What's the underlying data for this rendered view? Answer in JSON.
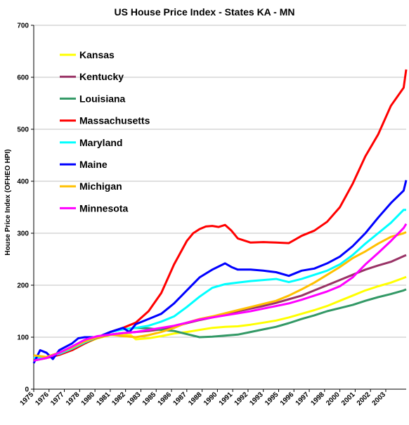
{
  "chart_data": {
    "type": "line",
    "title": "US House Price Index - States KA - MN",
    "xlabel": "",
    "ylabel": "House Price Index (OFHEO  HPI)",
    "ylim": [
      0,
      700
    ],
    "xlim": [
      1975,
      2004.2
    ],
    "y_ticks": [
      0,
      100,
      200,
      300,
      400,
      500,
      600,
      700
    ],
    "x_tick_labels": [
      "1975",
      "1976",
      "1977",
      "1978",
      "1980",
      "1981",
      "1982",
      "1983",
      "1985",
      "1986",
      "1987",
      "1988",
      "1990",
      "1991",
      "1992",
      "1993",
      "1995",
      "1996",
      "1997",
      "1998",
      "2000",
      "2001",
      "2002",
      "2003"
    ],
    "x_tick_values": [
      1975,
      1976.2,
      1977.4,
      1978.6,
      1979.8,
      1981,
      1982.2,
      1983.4,
      1984.6,
      1985.8,
      1987,
      1988.2,
      1989.4,
      1990.6,
      1991.8,
      1993,
      1994.2,
      1995.4,
      1996.6,
      1997.8,
      1999,
      2000.2,
      2001.4,
      2002.6
    ],
    "grid": "horizontal",
    "legend_position": "top-left",
    "series": [
      {
        "name": "Kansas",
        "color": "#ffff00",
        "x": [
          1975,
          1976,
          1977,
          1978,
          1979,
          1980,
          1981,
          1982,
          1982.6,
          1983,
          1984,
          1985,
          1986,
          1987,
          1988,
          1989,
          1990,
          1991,
          1992,
          1993,
          1994,
          1995,
          1996,
          1997,
          1998,
          1999,
          2000,
          2001,
          2002,
          2003,
          2004,
          2004.2
        ],
        "y": [
          58,
          62,
          70,
          78,
          88,
          98,
          104,
          105,
          104,
          96,
          98,
          102,
          107,
          110,
          114,
          118,
          120,
          121,
          124,
          128,
          132,
          138,
          145,
          152,
          160,
          170,
          180,
          190,
          198,
          205,
          214,
          216
        ]
      },
      {
        "name": "Kentucky",
        "color": "#993366",
        "x": [
          1975,
          1976,
          1977,
          1978,
          1979,
          1980,
          1981,
          1982,
          1983,
          1984,
          1985,
          1986,
          1987,
          1988,
          1989,
          1990,
          1991,
          1992,
          1993,
          1994,
          1995,
          1996,
          1997,
          1998,
          1999,
          2000,
          2001,
          2002,
          2003,
          2004,
          2004.2
        ],
        "y": [
          60,
          62,
          70,
          80,
          90,
          99,
          105,
          108,
          110,
          112,
          115,
          120,
          127,
          133,
          138,
          143,
          150,
          155,
          160,
          166,
          173,
          180,
          190,
          200,
          210,
          220,
          230,
          238,
          245,
          256,
          258
        ]
      },
      {
        "name": "Louisiana",
        "color": "#339966",
        "x": [
          1975,
          1976,
          1977,
          1978,
          1979,
          1980,
          1981,
          1982,
          1983,
          1984,
          1985,
          1986,
          1987,
          1988,
          1989,
          1990,
          1991,
          1992,
          1993,
          1994,
          1995,
          1996,
          1997,
          1998,
          1999,
          2000,
          2001,
          2002,
          2003,
          2004,
          2004.2
        ],
        "y": [
          55,
          60,
          67,
          75,
          88,
          100,
          110,
          115,
          118,
          117,
          114,
          112,
          106,
          100,
          101,
          103,
          105,
          110,
          115,
          120,
          127,
          135,
          142,
          150,
          156,
          162,
          170,
          177,
          183,
          190,
          192
        ]
      },
      {
        "name": "Massachusetts",
        "color": "#ff0000",
        "x": [
          1975,
          1976,
          1977,
          1978,
          1979,
          1980,
          1981,
          1982,
          1983,
          1984,
          1985,
          1986,
          1987,
          1987.5,
          1988,
          1988.5,
          1989,
          1989.5,
          1990,
          1990.5,
          1991,
          1992,
          1993,
          1994,
          1995,
          1995.5,
          1996,
          1997,
          1998,
          1999,
          2000,
          2001,
          2002,
          2003,
          2004,
          2004.2
        ],
        "y": [
          58,
          60,
          66,
          75,
          88,
          100,
          110,
          118,
          128,
          150,
          185,
          240,
          285,
          300,
          308,
          313,
          314,
          312,
          316,
          305,
          290,
          282,
          283,
          282,
          281,
          288,
          295,
          305,
          322,
          350,
          395,
          448,
          490,
          545,
          580,
          615
        ]
      },
      {
        "name": "Maryland",
        "color": "#00ffff",
        "x": [
          1975,
          1976,
          1977,
          1978,
          1979,
          1980,
          1981,
          1982,
          1983,
          1984,
          1985,
          1986,
          1987,
          1988,
          1989,
          1990,
          1991,
          1992,
          1993,
          1994,
          1995,
          1996,
          1997,
          1998,
          1999,
          2000,
          2001,
          2002,
          2003,
          2004,
          2004.2
        ],
        "y": [
          60,
          62,
          68,
          78,
          90,
          100,
          110,
          115,
          118,
          122,
          130,
          140,
          158,
          178,
          195,
          202,
          205,
          208,
          210,
          212,
          206,
          212,
          220,
          228,
          240,
          258,
          280,
          300,
          320,
          345,
          345
        ]
      },
      {
        "name": "Maine",
        "color": "#0000ff",
        "x": [
          1975,
          1975.5,
          1976,
          1976.5,
          1977,
          1978,
          1978.5,
          1979,
          1980,
          1981,
          1982,
          1982.5,
          1983,
          1984,
          1985,
          1986,
          1987,
          1988,
          1989,
          1990,
          1990.5,
          1991,
          1992,
          1993,
          1994,
          1995,
          1996,
          1997,
          1998,
          1999,
          2000,
          2001,
          2002,
          2003,
          2004,
          2004.2
        ],
        "y": [
          50,
          75,
          70,
          58,
          75,
          88,
          98,
          100,
          100,
          110,
          118,
          110,
          125,
          135,
          145,
          165,
          190,
          215,
          230,
          242,
          235,
          230,
          230,
          228,
          225,
          218,
          228,
          232,
          242,
          255,
          275,
          300,
          330,
          358,
          382,
          402
        ]
      },
      {
        "name": "Michigan",
        "color": "#ffc000",
        "x": [
          1975,
          1976,
          1977,
          1978,
          1979,
          1980,
          1981,
          1982,
          1983,
          1984,
          1985,
          1986,
          1987,
          1988,
          1989,
          1990,
          1991,
          1992,
          1993,
          1994,
          1995,
          1996,
          1997,
          1998,
          1999,
          2000,
          2001,
          2002,
          2003,
          2004,
          2004.2
        ],
        "y": [
          65,
          62,
          70,
          80,
          92,
          100,
          105,
          102,
          100,
          104,
          110,
          118,
          128,
          135,
          140,
          146,
          152,
          158,
          164,
          170,
          180,
          192,
          205,
          220,
          235,
          252,
          265,
          280,
          293,
          300,
          302
        ]
      },
      {
        "name": "Minnesota",
        "color": "#ff00ff",
        "x": [
          1975,
          1976,
          1977,
          1978,
          1979,
          1980,
          1981,
          1982,
          1983,
          1984,
          1985,
          1986,
          1987,
          1988,
          1989,
          1990,
          1991,
          1992,
          1993,
          1994,
          1995,
          1996,
          1997,
          1998,
          1999,
          2000,
          2001,
          2002,
          2003,
          2004,
          2004.2
        ],
        "y": [
          55,
          60,
          70,
          82,
          95,
          102,
          105,
          108,
          110,
          114,
          118,
          122,
          128,
          134,
          138,
          142,
          146,
          150,
          155,
          160,
          165,
          172,
          180,
          188,
          198,
          215,
          240,
          262,
          285,
          310,
          318
        ]
      }
    ]
  }
}
